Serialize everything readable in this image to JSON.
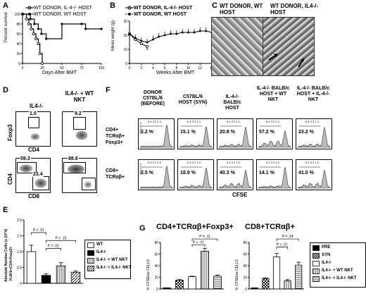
{
  "panels": {
    "A": {
      "letter": "A",
      "legend": [
        "WT DONOR, IL-4-/- HOST",
        "WT DONOR, WT HOST"
      ],
      "ylabel": "Percent survival",
      "xlabel": "Days After BMT",
      "xticks": [
        "0",
        "25",
        "50",
        "75",
        "100"
      ],
      "yticks": [
        "0",
        "20",
        "40",
        "60",
        "80",
        "100"
      ]
    },
    "B": {
      "letter": "B",
      "legend": [
        "WT DONOR, IL-4-/- HOST",
        "WT DONOR, WT HOST"
      ],
      "ylabel": "Mean weight (g)",
      "xlabel": "Weeks After BMT",
      "xticks": [
        "0",
        "2",
        "4",
        "6",
        "8",
        "10",
        "12",
        "14"
      ],
      "yticks": [
        "0",
        "10",
        "20",
        "30"
      ],
      "asterisk": "+"
    },
    "C": {
      "letter": "C",
      "left_title": "WT DONOR, WT HOST",
      "right_title": "WT DONOR, IL4-/- HOST"
    },
    "D": {
      "letter": "D",
      "col1": "IL4-/-",
      "col2": "IL4-/- + WT NKT",
      "row1_ylabel": "Foxp3",
      "row1_xlabel": "CD4",
      "row2_ylabel": "CD4",
      "row2_xlabel": "CD8",
      "gates": {
        "g1": "1.0",
        "g2": "9.2",
        "g3": "59.3",
        "g4": "23.4",
        "g5": "88.6"
      }
    },
    "E": {
      "letter": "E",
      "ylabel": "Absolute Number Cells (x 10^4)",
      "ylabel2": "H-2Kb+CD4+Foxp3+",
      "pvals": [
        "P < .01",
        "P = .02",
        "P = .15"
      ],
      "yticks": [
        "0",
        "0.5",
        "1.0",
        "1.5",
        "2.0"
      ],
      "legend": [
        "WT",
        "IL4-/-",
        "IL4-/- + WT NKT",
        "IL4-/- + IL4-/- NKT"
      ]
    },
    "F": {
      "letter": "F",
      "cols": [
        "DONOR C57BL/6 (BEFORE)",
        "C57BL/6 HOST (SYN)",
        "IL-4-/- BALB/c HOST",
        "IL-4-/- BALB/c HOST + WT NKT",
        "IL-4-/- BALB/c HOST + IL-4-/- NKT"
      ],
      "row1": "CD4+ TCRαβ+ Foxp3+",
      "row2": "CD8+ TCRαβ+",
      "row1_pcts": [
        "2.2 %",
        "15.1 %",
        "20.8 %",
        "57.2 %",
        "23.2 %"
      ],
      "row2_pcts": [
        "2.5 %",
        "18.9 %",
        "40.3 %",
        "14.1 %",
        "41.0 %"
      ],
      "xlabel": "CFSE",
      "hist_ylabel": "CELLS #",
      "division_marks": "5 4 3 2 1 0"
    },
    "G": {
      "letter": "G",
      "title1": "CD4+TCRαβ+Foxp3+",
      "title2": "CD8+TCRαβ+",
      "ylabel": "% CFSElow CELLS",
      "p1": [
        "P = .11",
        "P < .01"
      ],
      "p2": [
        "P = .24",
        "P < .01"
      ],
      "yticks1": [
        "0",
        "20",
        "40",
        "60",
        "80"
      ],
      "yticks2": [
        "0",
        "20",
        "40",
        "60",
        "80"
      ],
      "legend": [
        "PRE",
        "SYN",
        "IL4-/-",
        "IL4-/- + WT NKT",
        "IL4-/- + IL4-/- NKT"
      ]
    }
  },
  "chart_data": [
    {
      "type": "line",
      "panel": "A",
      "xlabel": "Days After BMT",
      "ylabel": "Percent survival",
      "xlim": [
        0,
        100
      ],
      "ylim": [
        0,
        100
      ],
      "series": [
        {
          "name": "WT DONOR, IL-4-/- HOST",
          "x": [
            0,
            5,
            8,
            11,
            14,
            17,
            20,
            22,
            25
          ],
          "y": [
            100,
            90,
            80,
            70,
            60,
            50,
            40,
            20,
            0
          ]
        },
        {
          "name": "WT DONOR, WT HOST",
          "x": [
            0,
            10,
            15,
            20,
            24,
            30,
            50,
            75,
            80,
            100
          ],
          "y": [
            100,
            90,
            80,
            70,
            60,
            50,
            80,
            80,
            70,
            70
          ]
        }
      ]
    },
    {
      "type": "line",
      "panel": "B",
      "xlabel": "Weeks After BMT",
      "ylabel": "Mean weight (g)",
      "xlim": [
        0,
        14
      ],
      "ylim": [
        0,
        30
      ],
      "series": [
        {
          "name": "WT DONOR, IL-4-/- HOST",
          "x": [
            0,
            1,
            2,
            3
          ],
          "y": [
            21,
            17,
            14,
            12
          ]
        },
        {
          "name": "WT DONOR, WT HOST",
          "x": [
            0,
            1,
            2,
            3,
            4,
            5,
            6,
            7,
            8,
            9,
            10,
            11,
            12,
            13,
            14
          ],
          "y": [
            21,
            18,
            16,
            15,
            17,
            19,
            20,
            21,
            21,
            22,
            22,
            22,
            23,
            23,
            22
          ]
        }
      ]
    },
    {
      "type": "bar",
      "panel": "E",
      "categories": [
        "WT",
        "IL4-/-",
        "IL4-/- + WT NKT",
        "IL4-/- + IL4-/- NKT"
      ],
      "values": [
        1.0,
        0.25,
        0.55,
        0.35
      ],
      "errors": [
        0.2,
        0.05,
        0.1,
        0.04
      ],
      "ylim": [
        0,
        2.0
      ]
    },
    {
      "type": "bar",
      "panel": "G-left",
      "title": "CD4+TCRαβ+Foxp3+",
      "categories": [
        "PRE",
        "SYN",
        "IL4-/-",
        "IL4-/- + WT NKT",
        "IL4-/- + IL4-/- NKT"
      ],
      "values": [
        2,
        15,
        21,
        65,
        22
      ],
      "errors": [
        0,
        1,
        1,
        5,
        2
      ],
      "ylim": [
        0,
        80
      ]
    },
    {
      "type": "bar",
      "panel": "G-right",
      "title": "CD8+TCRαβ+",
      "categories": [
        "PRE",
        "SYN",
        "IL4-/-",
        "IL4-/- + WT NKT",
        "IL4-/- + IL4-/- NKT"
      ],
      "values": [
        2,
        18,
        55,
        14,
        41
      ],
      "errors": [
        0,
        1,
        6,
        2,
        5
      ],
      "ylim": [
        0,
        80
      ]
    }
  ]
}
